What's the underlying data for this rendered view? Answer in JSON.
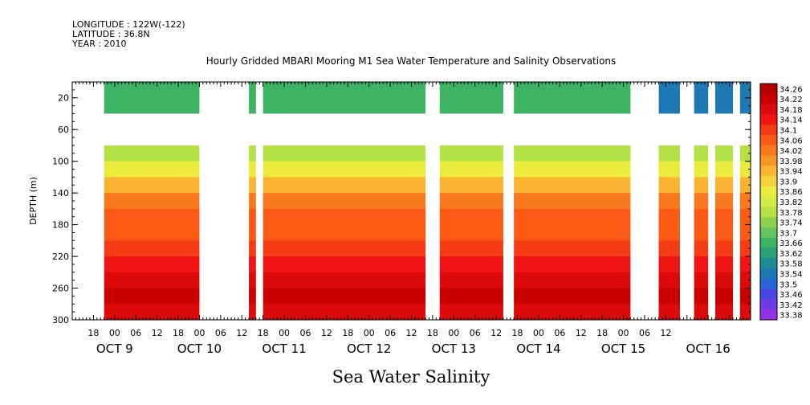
{
  "meta": {
    "longitude": "LONGITUDE : 122W(-122)",
    "latitude": "LATITUDE : 36.8N",
    "year": "YEAR : 2010"
  },
  "chart_data": {
    "type": "heatmap",
    "title": "Hourly Gridded MBARI Mooring M1 Sea Water Temperature and Salinity Observations",
    "xlabel": "",
    "ylabel": "DEPTH (m)",
    "caption": "Sea Water Salinity",
    "x_ticks_hour": [
      "18",
      "00",
      "06",
      "12",
      "18",
      "00",
      "06",
      "12",
      "18",
      "00",
      "06",
      "12",
      "18",
      "00",
      "06",
      "12",
      "18",
      "00",
      "06",
      "12",
      "18",
      "00",
      "06",
      "12",
      "18",
      "00",
      "06",
      "12"
    ],
    "x_ticks_day": [
      "OCT  9",
      "OCT 10",
      "OCT 11",
      "OCT 12",
      "OCT 13",
      "OCT 14",
      "OCT 15",
      "OCT 16"
    ],
    "xlim_hours_from_oct8_12": [
      0,
      192
    ],
    "y_ticks": [
      "20",
      "60",
      "100",
      "140",
      "180",
      "220",
      "260",
      "300"
    ],
    "ylim": [
      300,
      0
    ],
    "colorbar_levels": [
      "34.26",
      "34.22",
      "34.18",
      "34.14",
      "34.1",
      "34.06",
      "34.02",
      "33.98",
      "33.94",
      "33.9",
      "33.86",
      "33.82",
      "33.78",
      "33.74",
      "33.7",
      "33.66",
      "33.62",
      "33.58",
      "33.54",
      "33.5",
      "33.46",
      "33.42",
      "33.38"
    ],
    "colorbar_colors": [
      "#b40000",
      "#c80000",
      "#dc0a0a",
      "#f01414",
      "#f53c14",
      "#fa5a14",
      "#fa781e",
      "#fa9628",
      "#fab432",
      "#f5d23c",
      "#ebeb3c",
      "#d2eb46",
      "#b4e146",
      "#8cd250",
      "#64c35a",
      "#3cb464",
      "#28a078",
      "#1e8c96",
      "#1e78b4",
      "#2864d2",
      "#4646e6",
      "#6e3ce6",
      "#9632e6"
    ],
    "surface_band": {
      "depth_range_m": [
        0,
        40
      ],
      "typical_value": 33.66,
      "late_value": 33.52
    },
    "deep_profile": {
      "depths_m": [
        80,
        100,
        120,
        140,
        160,
        180,
        200,
        220,
        240,
        260,
        280,
        300
      ],
      "values": [
        33.8,
        33.84,
        33.94,
        34.02,
        34.06,
        34.08,
        34.1,
        34.14,
        34.18,
        34.22,
        34.18,
        34.14
      ]
    },
    "data_gaps_hours": [
      [
        0,
        9
      ],
      [
        36,
        50
      ],
      [
        52,
        54
      ],
      [
        100,
        104
      ],
      [
        122,
        125
      ],
      [
        158,
        166
      ],
      [
        172,
        176
      ],
      [
        180,
        182
      ],
      [
        187,
        189
      ]
    ]
  }
}
